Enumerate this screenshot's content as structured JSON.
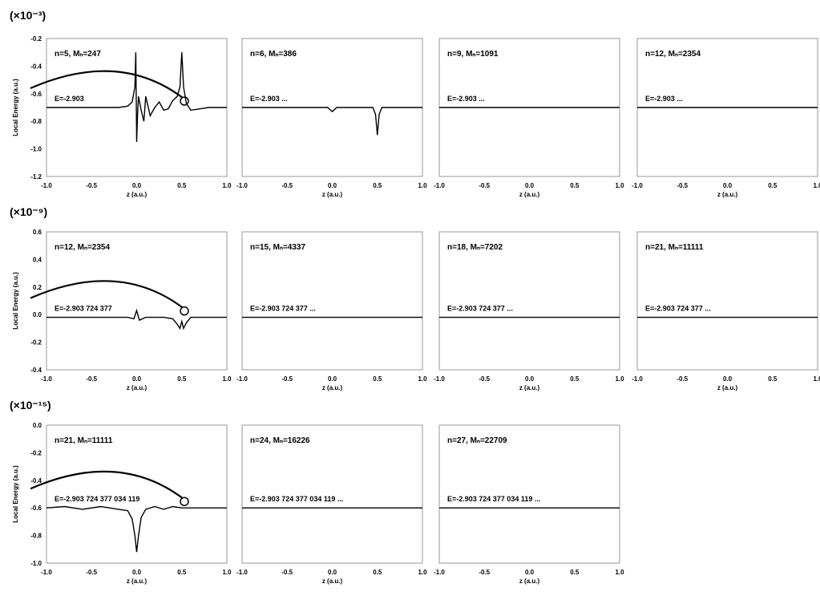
{
  "chart_data": [
    {
      "row": 1,
      "scale_label": "(×10⁻³)",
      "ylabel": "Local Energy (a.u.)",
      "yticks": [
        "-0.2",
        "-0.4",
        "-0.6",
        "-0.8",
        "-1.0",
        "-1.2"
      ],
      "ylim": [
        -1.2,
        -0.2
      ],
      "baseline": -0.7,
      "panels": [
        {
          "label": "n=5, Mₙ=247",
          "energy": "E=-2.903",
          "type": "line",
          "x": [
            -1.0,
            -0.8,
            -0.6,
            -0.4,
            -0.2,
            -0.1,
            -0.05,
            -0.02,
            -0.01,
            0.0,
            0.01,
            0.02,
            0.05,
            0.08,
            0.1,
            0.15,
            0.2,
            0.25,
            0.3,
            0.35,
            0.4,
            0.45,
            0.48,
            0.5,
            0.52,
            0.55,
            0.6,
            0.7,
            0.8,
            0.9,
            1.0
          ],
          "y": [
            -0.7,
            -0.7,
            -0.7,
            -0.7,
            -0.7,
            -0.69,
            -0.66,
            -0.55,
            -0.3,
            -0.95,
            -0.75,
            -0.62,
            -0.72,
            -0.8,
            -0.62,
            -0.76,
            -0.7,
            -0.66,
            -0.72,
            -0.71,
            -0.65,
            -0.62,
            -0.55,
            -0.3,
            -0.55,
            -0.67,
            -0.72,
            -0.71,
            -0.7,
            -0.7,
            -0.7
          ]
        },
        {
          "label": "n=6, Mₙ=386",
          "energy": "E=-2.903 ...",
          "type": "line",
          "x": [
            -1.0,
            -0.5,
            -0.05,
            0.0,
            0.05,
            0.3,
            0.45,
            0.48,
            0.5,
            0.52,
            0.55,
            0.7,
            1.0
          ],
          "y": [
            -0.7,
            -0.7,
            -0.7,
            -0.73,
            -0.7,
            -0.7,
            -0.7,
            -0.75,
            -0.9,
            -0.75,
            -0.7,
            -0.7,
            -0.7
          ]
        },
        {
          "label": "n=9, Mₙ=1091",
          "energy": "E=-2.903 ...",
          "type": "line",
          "x": [
            -1.0,
            1.0
          ],
          "y": [
            -0.7,
            -0.7
          ]
        },
        {
          "label": "n=12, Mₙ=2354",
          "energy": "E=-2.903 ...",
          "type": "line",
          "x": [
            -1.0,
            1.0
          ],
          "y": [
            -0.7,
            -0.7
          ]
        }
      ],
      "xticks": [
        "-1.0",
        "-0.5",
        "0.0",
        "0.5",
        "1.0"
      ],
      "xlabel": "z (a.u.)"
    },
    {
      "row": 2,
      "scale_label": "(×10⁻⁹)",
      "ylabel": "Local Energy (a.u.)",
      "yticks": [
        "0.6",
        "0.4",
        "0.2",
        "0.0",
        "-0.2",
        "-0.4"
      ],
      "ylim": [
        -0.4,
        0.6
      ],
      "baseline": -0.02,
      "panels": [
        {
          "label": "n=12, Mₙ=2354",
          "energy": "E=-2.903 724 377",
          "type": "line",
          "x": [
            -1.0,
            -0.5,
            -0.1,
            -0.03,
            0.0,
            0.03,
            0.1,
            0.3,
            0.4,
            0.45,
            0.48,
            0.5,
            0.52,
            0.55,
            0.6,
            0.7,
            1.0
          ],
          "y": [
            -0.02,
            -0.02,
            -0.02,
            -0.03,
            0.03,
            -0.04,
            -0.02,
            -0.02,
            -0.03,
            -0.07,
            -0.1,
            -0.05,
            -0.1,
            -0.06,
            -0.02,
            -0.02,
            -0.02
          ]
        },
        {
          "label": "n=15, Mₙ=4337",
          "energy": "E=-2.903 724 377 ...",
          "type": "line",
          "x": [
            -1.0,
            1.0
          ],
          "y": [
            -0.02,
            -0.02
          ]
        },
        {
          "label": "n=18, Mₙ=7202",
          "energy": "E=-2.903 724 377 ...",
          "type": "line",
          "x": [
            -1.0,
            1.0
          ],
          "y": [
            -0.02,
            -0.02
          ]
        },
        {
          "label": "n=21, Mₙ=11111",
          "energy": "E=-2.903 724 377 ...",
          "type": "line",
          "x": [
            -1.0,
            1.0
          ],
          "y": [
            -0.02,
            -0.02
          ]
        }
      ],
      "xticks": [
        "-1.0",
        "-0.5",
        "0.0",
        "0.5",
        "1.0"
      ],
      "xlabel": "z (a.u.)"
    },
    {
      "row": 3,
      "scale_label": "(×10⁻¹⁵)",
      "ylabel": "Local Energy (a.u.)",
      "yticks": [
        "0.0",
        "-0.2",
        "-0.4",
        "-0.6",
        "-0.8",
        "-1.0"
      ],
      "ylim": [
        -1.0,
        0.0
      ],
      "baseline": -0.6,
      "panels": [
        {
          "label": "n=21, Mₙ=11111",
          "energy": "E=-2.903 724 377 034 119",
          "type": "line",
          "x": [
            -1.0,
            -0.8,
            -0.6,
            -0.4,
            -0.2,
            -0.1,
            -0.05,
            -0.02,
            0.0,
            0.02,
            0.05,
            0.1,
            0.2,
            0.3,
            0.4,
            0.5,
            0.6,
            0.8,
            1.0
          ],
          "y": [
            -0.6,
            -0.59,
            -0.61,
            -0.59,
            -0.61,
            -0.62,
            -0.68,
            -0.8,
            -0.92,
            -0.8,
            -0.67,
            -0.61,
            -0.59,
            -0.61,
            -0.59,
            -0.6,
            -0.6,
            -0.6,
            -0.6
          ]
        },
        {
          "label": "n=24, Mₙ=16226",
          "energy": "E=-2.903 724 377 034 119 ...",
          "type": "line",
          "x": [
            -1.0,
            1.0
          ],
          "y": [
            -0.6,
            -0.6
          ]
        },
        {
          "label": "n=27, Mₙ=22709",
          "energy": "E=-2.903 724 377 034 119 ...",
          "type": "line",
          "x": [
            -1.0,
            1.0
          ],
          "y": [
            -0.6,
            -0.6
          ]
        }
      ],
      "xticks": [
        "-1.0",
        "-0.5",
        "0.0",
        "0.5",
        "1.0"
      ],
      "xlabel": "z (a.u.)"
    }
  ]
}
